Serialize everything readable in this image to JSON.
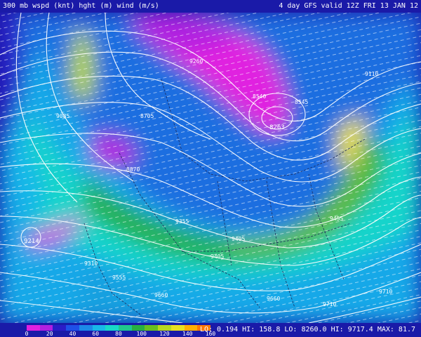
{
  "header": {
    "title_left": "300 mb wspd (knt) hght (m) wind (m/s)",
    "title_right": "4 day GFS valid 12Z FRI 13 JAN 12"
  },
  "legend": {
    "ticks": [
      "0",
      "20",
      "40",
      "60",
      "80",
      "100",
      "120",
      "140",
      "160"
    ],
    "colors": [
      "#e020e0",
      "#b020e0",
      "#2a1cc8",
      "#1e50e8",
      "#1c8ae8",
      "#18b8e8",
      "#18d8c8",
      "#20c88c",
      "#28b040",
      "#68c020",
      "#b8d820",
      "#e8e020",
      "#ffb000",
      "#ff7a00"
    ]
  },
  "stats": {
    "text": "LO: 0.194  HI: 158.8 LO: 8260.0  HI: 9717.4 MAX:  81.7"
  },
  "map": {
    "low_labels": [
      "8263",
      "9214"
    ],
    "height_labels": [
      "9260",
      "9085",
      "8540",
      "8545",
      "8870",
      "9355",
      "9405",
      "9455",
      "9555",
      "9310",
      "9405",
      "9660",
      "9660",
      "9710",
      "9710",
      "8705",
      "9110"
    ]
  },
  "colors": {
    "background": "#1a1aa8",
    "contour": "#ffffff",
    "borders": "#1c2a5a"
  }
}
